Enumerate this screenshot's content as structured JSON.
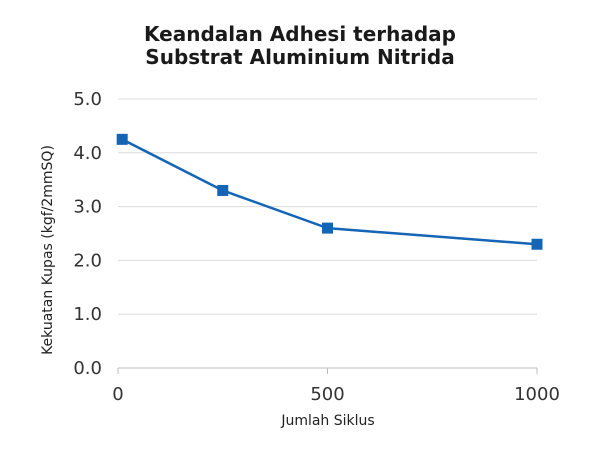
{
  "chart_data": {
    "type": "line",
    "title_lines": [
      "Keandalan Adhesi terhadap",
      "Substrat Aluminium Nitrida"
    ],
    "xlabel": "Jumlah Siklus",
    "ylabel": "Kekuatan Kupas (kgf/2mmSQ)",
    "xlim": [
      0,
      1000
    ],
    "ylim": [
      0,
      5
    ],
    "x_ticks": [
      0,
      500,
      1000
    ],
    "x_tick_labels": [
      "0",
      "500",
      "1000"
    ],
    "y_ticks": [
      0,
      1,
      2,
      3,
      4,
      5
    ],
    "y_tick_labels": [
      "0.0",
      "1.0",
      "2.0",
      "3.0",
      "4.0",
      "5.0"
    ],
    "grid": "horizontal",
    "legend": "none",
    "series": [
      {
        "x": [
          10,
          250,
          500,
          1000
        ],
        "y": [
          4.25,
          3.3,
          2.6,
          2.3
        ],
        "color": "#1565b7",
        "marker": "square"
      }
    ]
  }
}
